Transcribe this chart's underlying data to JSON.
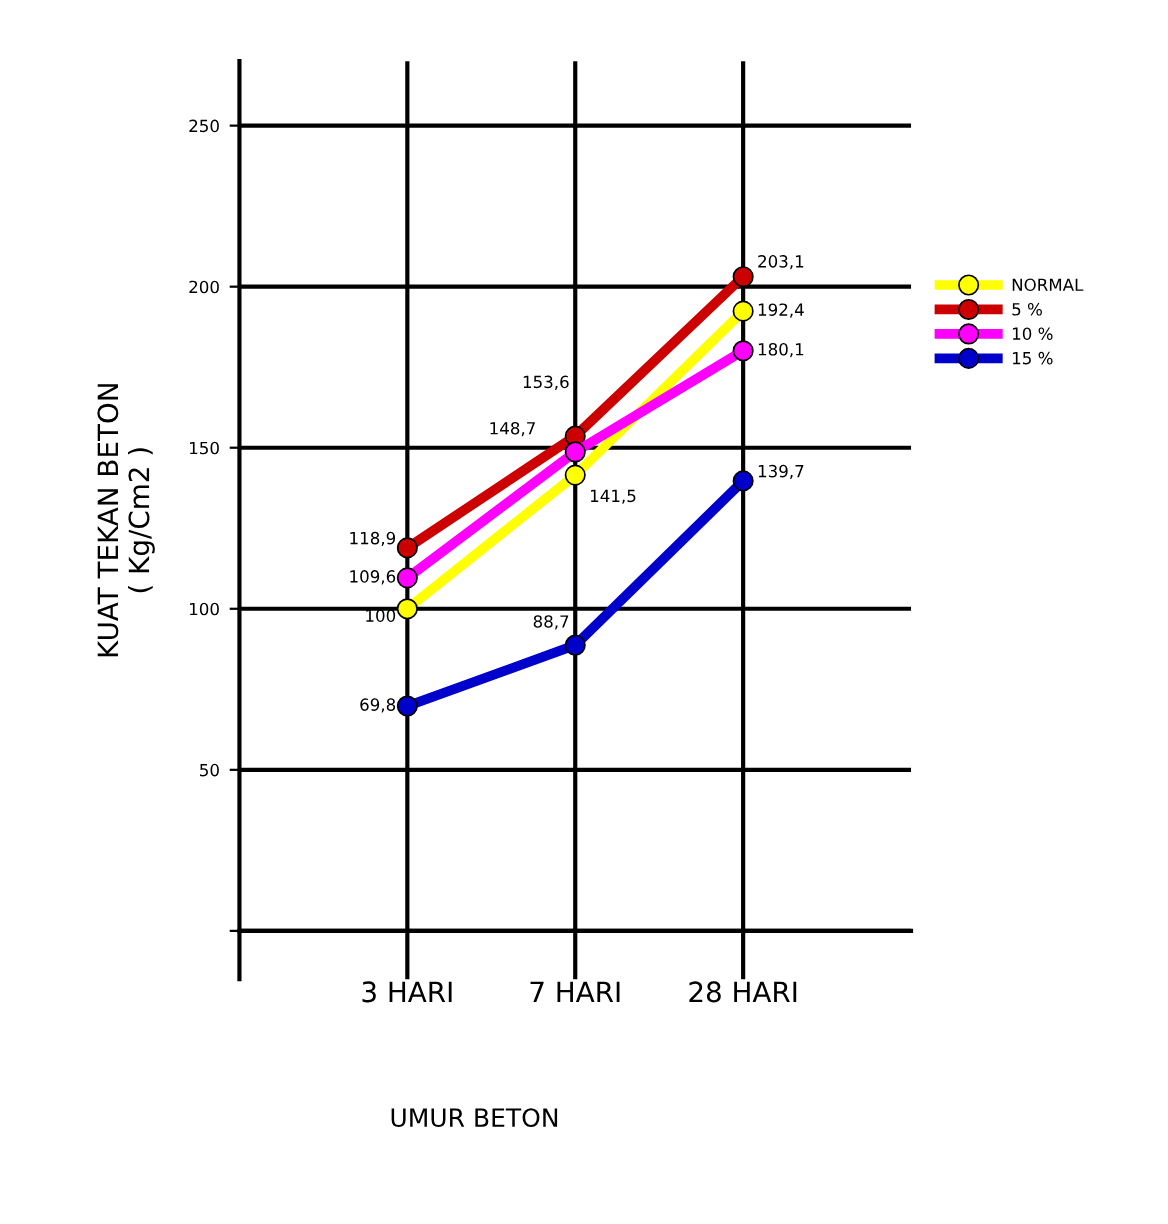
{
  "chart_data": {
    "type": "line",
    "xlabel": "UMUR BETON",
    "ylabel": "KUAT TEKAN BETON\n( Kg/Cm2 )",
    "categories": [
      "3 HARI",
      "7 HARI",
      "28 HARI"
    ],
    "series": [
      {
        "name": "NORMAL",
        "color": "#ffff00",
        "values": [
          100,
          141.5,
          192.4
        ],
        "value_labels": [
          "100",
          "141,5",
          "192,4"
        ]
      },
      {
        "name": "5 %",
        "color": "#cc0000",
        "values": [
          118.9,
          153.6,
          203.1
        ],
        "value_labels": [
          "118,9",
          "153,6",
          "203,1"
        ]
      },
      {
        "name": "10 %",
        "color": "#ff00ff",
        "values": [
          109.6,
          148.7,
          180.1
        ],
        "value_labels": [
          "109,6",
          "148,7",
          "180,1"
        ]
      },
      {
        "name": "15 %",
        "color": "#0000cc",
        "values": [
          69.8,
          88.7,
          139.7
        ],
        "value_labels": [
          "69,8",
          "88,7",
          "139,7"
        ]
      }
    ],
    "ylim": [
      -15,
      270
    ],
    "yticks": [
      {
        "value": 0,
        "label": null
      },
      50,
      100,
      150,
      200,
      250
    ],
    "grid": true,
    "legend": "top right",
    "marker": "circle",
    "line_style": "solid"
  }
}
